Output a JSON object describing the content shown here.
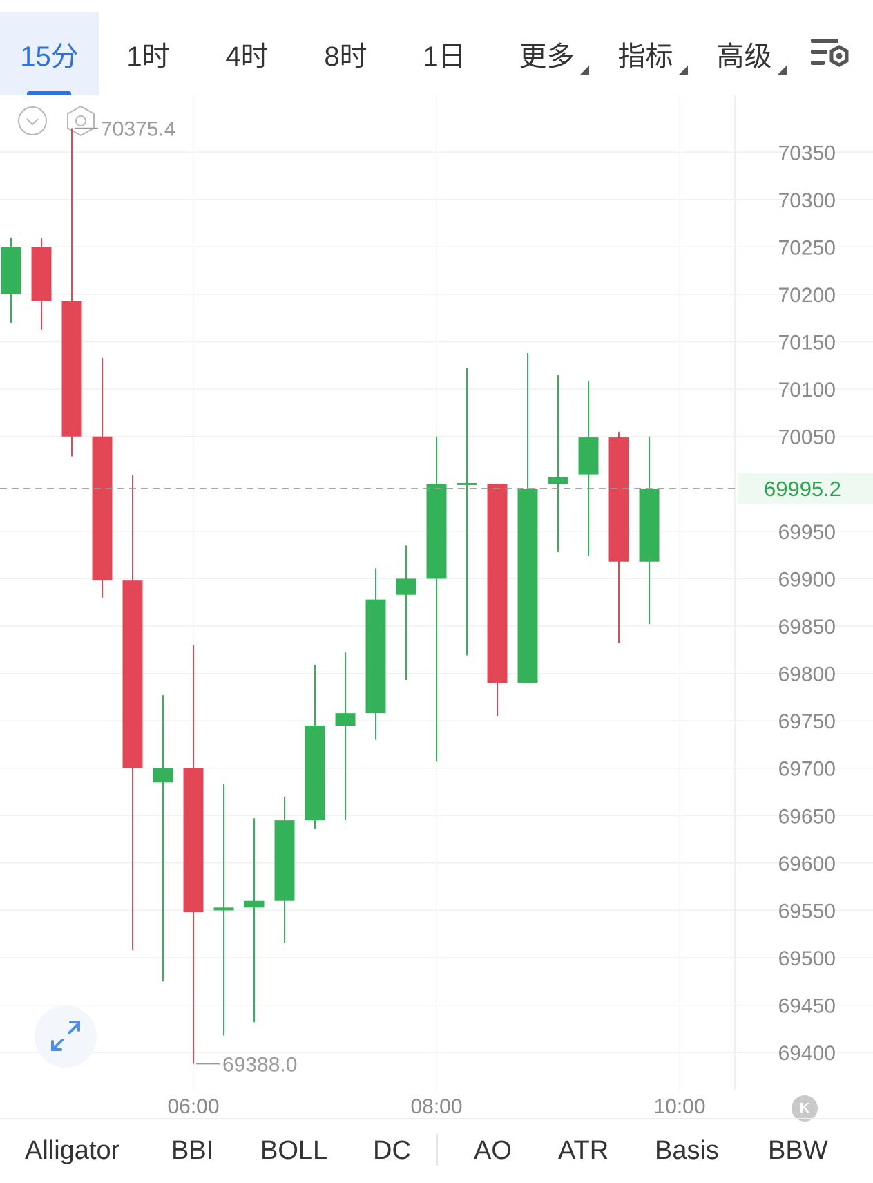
{
  "tabs": [
    {
      "label": "15分",
      "active": true
    },
    {
      "label": "1时"
    },
    {
      "label": "4时"
    },
    {
      "label": "8时"
    },
    {
      "label": "1日"
    },
    {
      "label": "更多",
      "dropdown": true
    },
    {
      "label": "指标",
      "dropdown": true
    },
    {
      "label": "高级",
      "dropdown": true
    }
  ],
  "icons": {
    "settings": "chart-settings-icon",
    "collapse": "chevron-down-circle-icon",
    "hexagon": "hexagon-settings-icon",
    "expand": "expand-arrows-icon"
  },
  "k_button": "K",
  "colors": {
    "up": "#33b25a",
    "down": "#e34655",
    "accent": "#2f73d8",
    "last_price": "#2ea44f"
  },
  "chart_data": {
    "type": "candlestick",
    "y_ticks": [
      "70350",
      "70300",
      "70250",
      "70200",
      "70150",
      "70100",
      "70050",
      "69950",
      "69900",
      "69850",
      "69800",
      "69750",
      "69700",
      "69650",
      "69600",
      "69550",
      "69500",
      "69450",
      "69400"
    ],
    "x_ticks": [
      {
        "label": "06:00",
        "index": 6
      },
      {
        "label": "08:00",
        "index": 14
      },
      {
        "label": "10:00",
        "index": 22
      }
    ],
    "last_price": "69995.2",
    "high_label": "70375.4",
    "low_label": "69388.0",
    "ylim": [
      69360,
      70410
    ],
    "candles": [
      {
        "o": 70200,
        "h": 70260,
        "l": 70170,
        "c": 70250
      },
      {
        "o": 70250,
        "h": 70259,
        "l": 70163,
        "c": 70193
      },
      {
        "o": 70193,
        "h": 70375.4,
        "l": 70029,
        "c": 70050
      },
      {
        "o": 70050,
        "h": 70133,
        "l": 69880,
        "c": 69898
      },
      {
        "o": 69898,
        "h": 70009,
        "l": 69508,
        "c": 69700
      },
      {
        "o": 69685,
        "h": 69777,
        "l": 69475,
        "c": 69700
      },
      {
        "o": 69700,
        "h": 69830,
        "l": 69388.0,
        "c": 69548
      },
      {
        "o": 69550,
        "h": 69683,
        "l": 69418,
        "c": 69553
      },
      {
        "o": 69553,
        "h": 69647,
        "l": 69432,
        "c": 69560
      },
      {
        "o": 69560,
        "h": 69670,
        "l": 69516,
        "c": 69645
      },
      {
        "o": 69645,
        "h": 69809,
        "l": 69636,
        "c": 69745
      },
      {
        "o": 69745,
        "h": 69822,
        "l": 69645,
        "c": 69758
      },
      {
        "o": 69758,
        "h": 69911,
        "l": 69730,
        "c": 69878
      },
      {
        "o": 69883,
        "h": 69935,
        "l": 69793,
        "c": 69900
      },
      {
        "o": 69900,
        "h": 70050,
        "l": 69707,
        "c": 70000
      },
      {
        "o": 70000,
        "h": 70122,
        "l": 69819,
        "c": 70001
      },
      {
        "o": 70000,
        "h": 70000,
        "l": 69755,
        "c": 69790
      },
      {
        "o": 69790,
        "h": 70138,
        "l": 69790,
        "c": 69995
      },
      {
        "o": 70000,
        "h": 70115,
        "l": 69928,
        "c": 70007
      },
      {
        "o": 70010,
        "h": 70108,
        "l": 69924,
        "c": 70049
      },
      {
        "o": 70049,
        "h": 70055,
        "l": 69832,
        "c": 69918
      },
      {
        "o": 69918,
        "h": 70050,
        "l": 69852,
        "c": 69995.2
      }
    ]
  },
  "indicators": [
    "Alligator",
    "BBI",
    "BOLL",
    "DC",
    "AO",
    "ATR",
    "Basis",
    "BBW"
  ]
}
